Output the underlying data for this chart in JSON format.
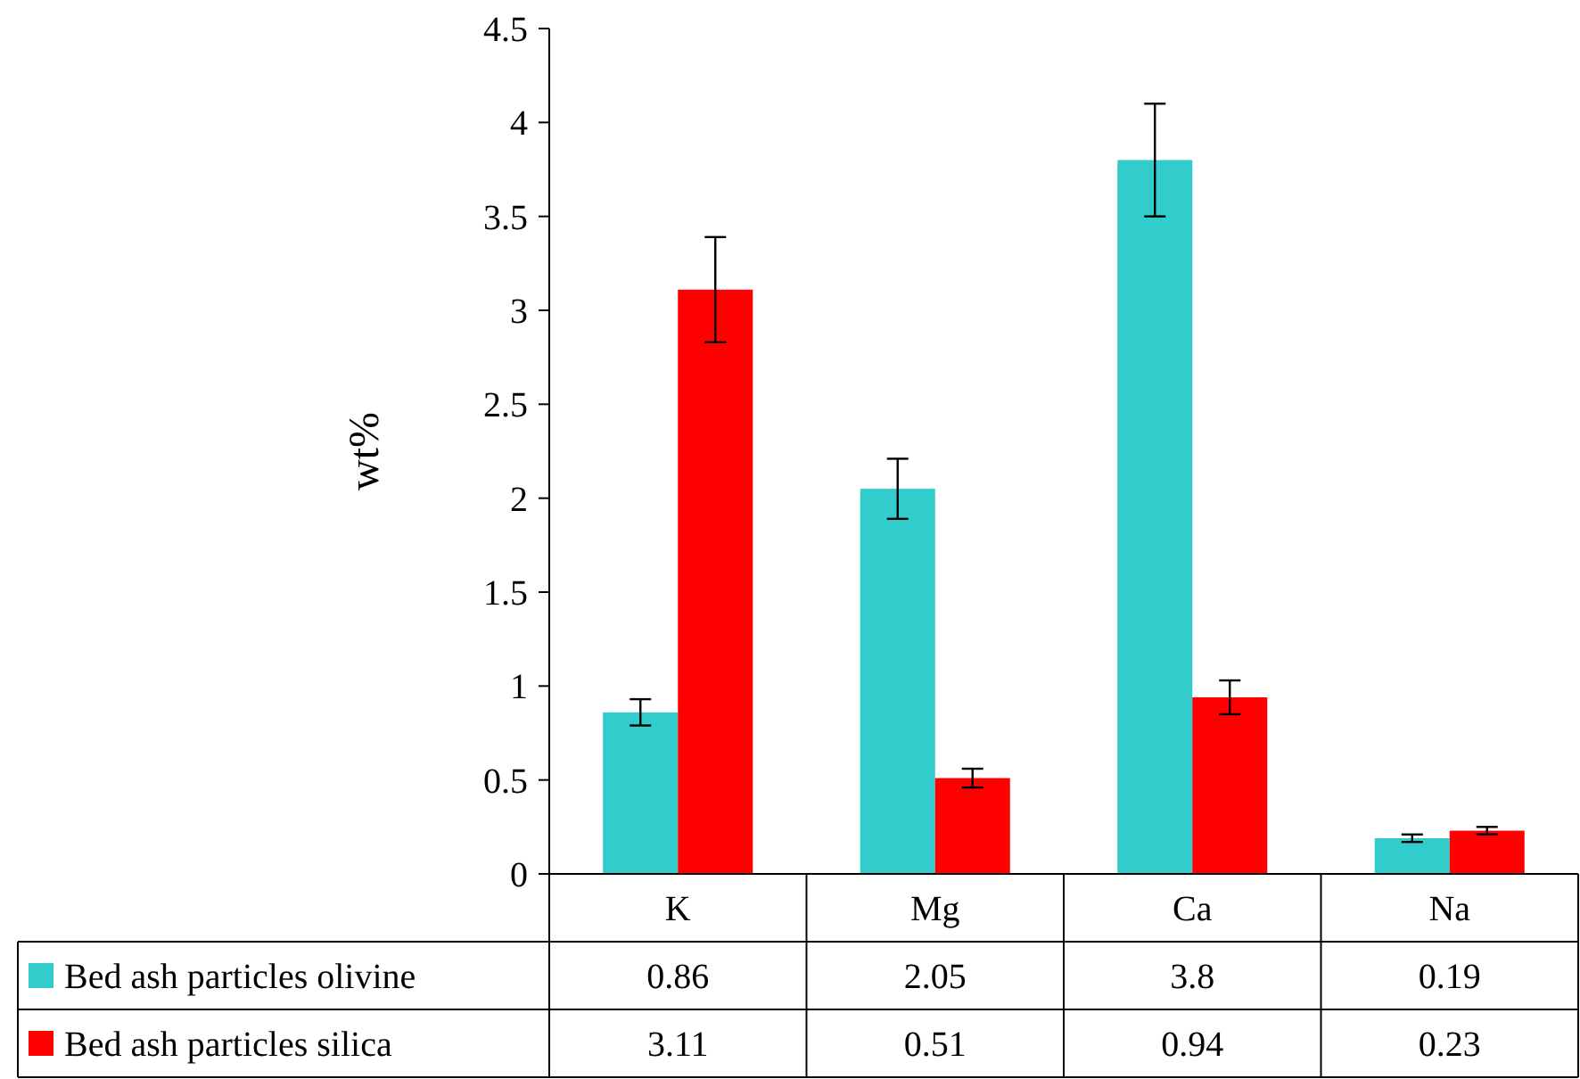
{
  "chart_data": {
    "type": "bar",
    "ylabel": "wt%",
    "categories": [
      "K",
      "Mg",
      "Ca",
      "Na"
    ],
    "series": [
      {
        "name": "Bed ash particles olivine",
        "color": "#33cccc",
        "values": [
          0.86,
          2.05,
          3.8,
          0.19
        ],
        "errors": [
          0.07,
          0.16,
          0.3,
          0.02
        ]
      },
      {
        "name": "Bed ash particles silica",
        "color": "#ff0000",
        "values": [
          3.11,
          0.51,
          0.94,
          0.23
        ],
        "errors": [
          0.28,
          0.05,
          0.09,
          0.02
        ]
      }
    ],
    "ylim": [
      0,
      4.5
    ],
    "yticks": [
      0,
      0.5,
      1,
      1.5,
      2,
      2.5,
      3,
      3.5,
      4,
      4.5
    ],
    "data_labels": true,
    "legend": "bottom"
  }
}
